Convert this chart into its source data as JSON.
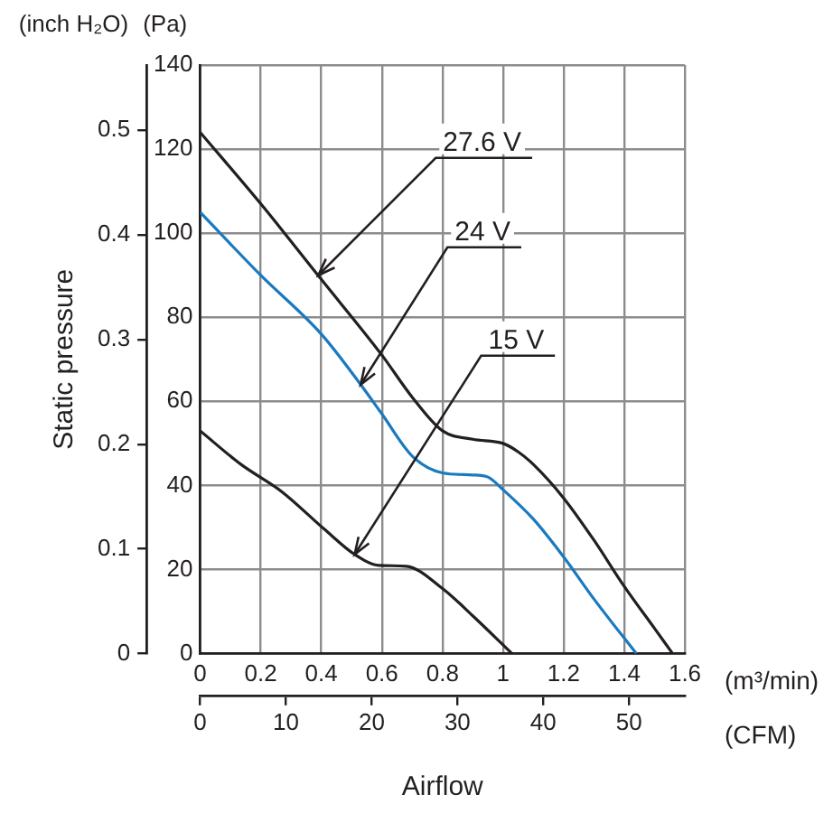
{
  "chart_data": {
    "type": "line",
    "xlabel": "(m³/min)",
    "x2label": "(CFM)",
    "ylabel": "(Pa)",
    "y2label": "(inch H₂O)",
    "xlim": [
      0,
      1.6
    ],
    "xticks": [
      0,
      0.2,
      0.4,
      0.6,
      0.8,
      1.0,
      1.2,
      1.4,
      1.6
    ],
    "x2lim": [
      0,
      56.5
    ],
    "x2ticks": [
      0,
      10,
      20,
      30,
      40,
      50
    ],
    "ylim": [
      0,
      140
    ],
    "yticks": [
      0,
      20,
      40,
      60,
      80,
      100,
      120,
      140
    ],
    "y2lim": [
      0,
      0.562
    ],
    "y2ticks": [
      0,
      0.1,
      0.2,
      0.3,
      0.4,
      0.5
    ],
    "grid": true,
    "marker": "none",
    "series": [
      {
        "color": "#231f20",
        "x": [
          0,
          0.2,
          0.4,
          0.6,
          0.7,
          0.8,
          0.9,
          1.0,
          1.05,
          1.1,
          1.2,
          1.3,
          1.4,
          1.5,
          1.56
        ],
        "values": [
          124,
          107,
          89,
          71,
          61,
          53,
          51,
          50,
          48,
          45,
          37,
          27,
          16,
          6,
          0
        ]
      },
      {
        "color": "#1a7abf",
        "x": [
          0,
          0.2,
          0.4,
          0.53,
          0.6,
          0.7,
          0.8,
          0.9,
          0.95,
          1.0,
          1.1,
          1.2,
          1.3,
          1.44
        ],
        "values": [
          105,
          90,
          76,
          64,
          57,
          47,
          43,
          42.5,
          42,
          39,
          32,
          23,
          13,
          0
        ]
      },
      {
        "color": "#231f20",
        "x": [
          0,
          0.135,
          0.27,
          0.41,
          0.51,
          0.59,
          0.68,
          0.8,
          0.9,
          1.03
        ],
        "values": [
          53,
          45,
          38.5,
          29.6,
          23.6,
          21,
          20.8,
          15.5,
          9,
          0
        ]
      }
    ],
    "annotations": [
      {
        "text": "27.6 V",
        "x": 0.39,
        "y": 90
      },
      {
        "text": "24 V",
        "x": 0.53,
        "y": 64
      },
      {
        "text": "15 V",
        "x": 0.51,
        "y": 23.6
      },
      "Static pressure",
      "Airflow"
    ]
  }
}
